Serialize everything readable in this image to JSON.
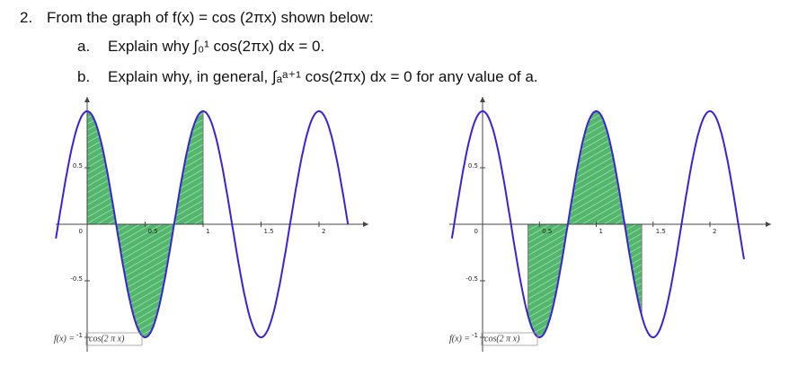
{
  "problem": {
    "number": "2.",
    "stem": "From the graph of f(x) = cos (2πx) shown below:",
    "parts": [
      {
        "label": "a.",
        "text": "Explain why ∫₀¹ cos(2πx) dx = 0."
      },
      {
        "label": "b.",
        "text": "Explain why, in general, ∫ₐᵃ⁺¹ cos(2πx) dx = 0 for any value of a."
      }
    ]
  },
  "graphs": [
    {
      "x_tick_labels": [
        "0.5",
        "1",
        "1.5",
        "2"
      ],
      "y_tick_labels": [
        "0.5",
        "-0.5",
        "-1"
      ],
      "origin_label": "0",
      "function_name": "f(x) =",
      "function_expr": "cos(2 π x)"
    },
    {
      "x_tick_labels": [
        "0.5",
        "1",
        "1.5",
        "2"
      ],
      "y_tick_labels": [
        "0.5",
        "-0.5",
        "-1"
      ],
      "origin_label": "0",
      "function_name": "f(x) =",
      "function_expr": "cos(2 π x)"
    }
  ]
}
